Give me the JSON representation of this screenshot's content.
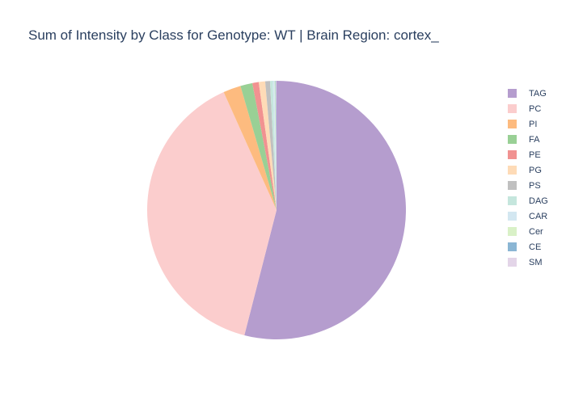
{
  "chart_data": {
    "type": "pie",
    "title": "Sum of Intensity by Class for Genotype: WT | Brain Region: cortex_",
    "direction": "clockwise",
    "sort": "descending",
    "legend_position": "right",
    "slices": [
      {
        "label": "TAG",
        "value": 54.0,
        "color": "#b59dce"
      },
      {
        "label": "PC",
        "value": 39.3,
        "color": "#fbcdcd"
      },
      {
        "label": "PI",
        "value": 2.2,
        "color": "#fdbb7f"
      },
      {
        "label": "FA",
        "value": 1.5,
        "color": "#99d095"
      },
      {
        "label": "PE",
        "value": 0.8,
        "color": "#f19291"
      },
      {
        "label": "PG",
        "value": 0.8,
        "color": "#fedbb7"
      },
      {
        "label": "PS",
        "value": 0.6,
        "color": "#c0c0c0"
      },
      {
        "label": "DAG",
        "value": 0.35,
        "color": "#c5e6dd"
      },
      {
        "label": "CAR",
        "value": 0.2,
        "color": "#d3e7f1"
      },
      {
        "label": "Cer",
        "value": 0.1,
        "color": "#d9f1c7"
      },
      {
        "label": "CE",
        "value": 0.08,
        "color": "#8bb6d4"
      },
      {
        "label": "SM",
        "value": 0.07,
        "color": "#e3d5e8"
      }
    ]
  }
}
